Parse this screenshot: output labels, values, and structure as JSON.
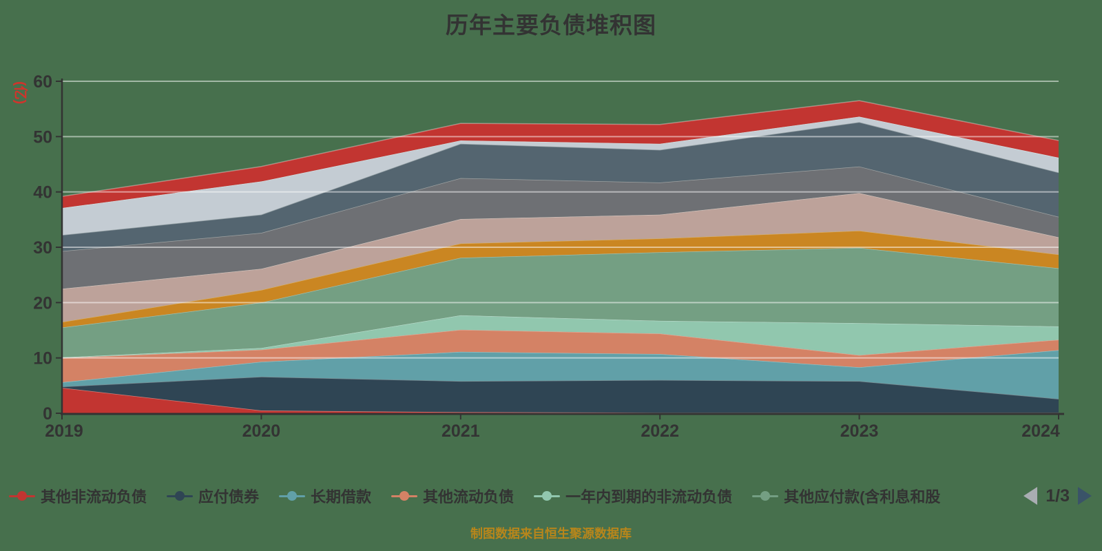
{
  "title": "历年主要负债堆积图",
  "caption": "制图数据来自恒生聚源数据库",
  "background_color": "#47704D",
  "title_color": "#333333",
  "caption_color": "#b8861b",
  "legend": {
    "page": "1/3",
    "prev_arrow_color": "#a9adb2",
    "next_arrow_color": "#3a5368",
    "items": [
      {
        "label": "其他非流动负债"
      },
      {
        "label": "应付债券"
      },
      {
        "label": "长期借款"
      },
      {
        "label": "其他流动负债"
      },
      {
        "label": "一年内到期的非流动负债"
      },
      {
        "label": "其他应付款(含利息和股"
      }
    ]
  },
  "chart_data": {
    "type": "area",
    "stacked": true,
    "title": "历年主要负债堆积图",
    "unit_label": "(亿)",
    "xlabel": "",
    "ylabel": "(亿)",
    "categories": [
      "2019",
      "2020",
      "2021",
      "2022",
      "2023",
      "2024"
    ],
    "ylim": [
      0,
      60
    ],
    "y_ticks": [
      0,
      10,
      20,
      30,
      40,
      50,
      60
    ],
    "grid": "horizontal",
    "legend_position": "bottom",
    "series": [
      {
        "name": "其他非流动负债",
        "color": "#c23531",
        "values": [
          4.6,
          0.5,
          0.2,
          0.1,
          0.1,
          0.1
        ]
      },
      {
        "name": "应付债券",
        "color": "#2f4554",
        "values": [
          0.2,
          6.1,
          5.6,
          5.9,
          5.7,
          2.5
        ]
      },
      {
        "name": "长期借款",
        "color": "#61a0a8",
        "values": [
          0.8,
          2.7,
          5.3,
          4.7,
          2.5,
          8.8
        ]
      },
      {
        "name": "其他流动负债",
        "color": "#d48265",
        "values": [
          4.4,
          2.2,
          4.0,
          3.7,
          2.2,
          1.9
        ]
      },
      {
        "name": "一年内到期的非流动负债",
        "color": "#91c7ae",
        "values": [
          0.1,
          0.3,
          2.6,
          2.3,
          5.8,
          2.4
        ]
      },
      {
        "name": "其他应付款(含利息和股",
        "color": "#749f83",
        "values": [
          5.4,
          8.2,
          10.4,
          12.4,
          13.6,
          10.5
        ]
      },
      {
        "name": "",
        "color": "#ca8622",
        "values": [
          1.0,
          2.3,
          2.6,
          2.5,
          3.1,
          2.5
        ]
      },
      {
        "name": "",
        "color": "#bda29a",
        "values": [
          6.0,
          3.8,
          4.4,
          4.3,
          6.8,
          3.1
        ]
      },
      {
        "name": "",
        "color": "#6e7074",
        "values": [
          6.8,
          6.5,
          7.4,
          5.8,
          4.8,
          3.7
        ]
      },
      {
        "name": "",
        "color": "#546570",
        "values": [
          2.9,
          3.3,
          6.2,
          5.9,
          8.0,
          8.0
        ]
      },
      {
        "name": "",
        "color": "#c4ccd3",
        "values": [
          4.9,
          6.0,
          0.6,
          1.1,
          1.0,
          2.7
        ]
      },
      {
        "name": "",
        "color": "#c23531",
        "values": [
          2.1,
          2.7,
          3.1,
          3.5,
          2.9,
          3.1
        ]
      }
    ]
  }
}
